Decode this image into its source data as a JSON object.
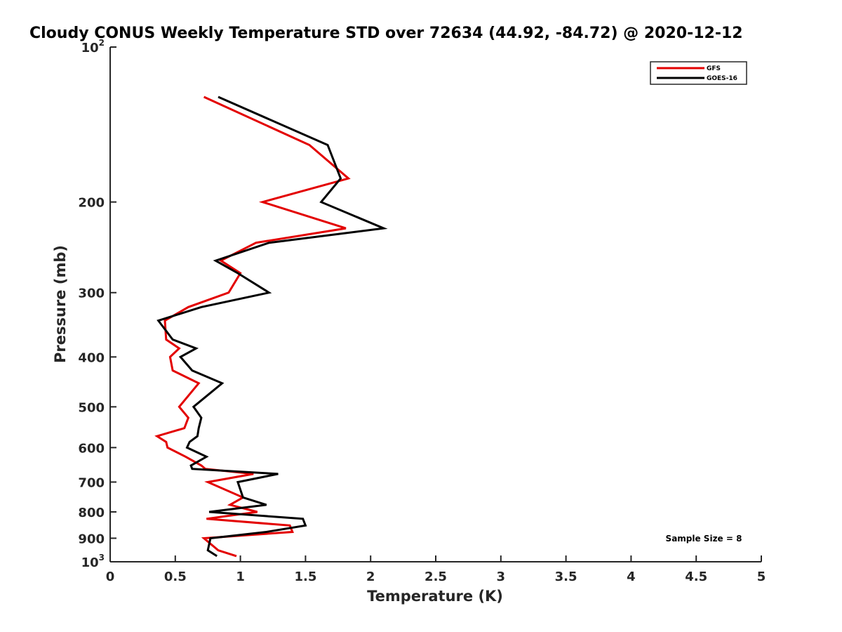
{
  "chart_data": {
    "type": "line",
    "title": "Cloudy CONUS Weekly Temperature STD over 72634 (44.92, -84.72) @ 2020-12-12",
    "xlabel": "Temperature (K)",
    "ylabel": "Pressure (mb)",
    "xlim": [
      0,
      5
    ],
    "ylim": [
      100,
      1000
    ],
    "y_scale": "log",
    "y_reversed": true,
    "grid": false,
    "legend_position": "top-right",
    "x_ticks": [
      "0",
      "0.5",
      "1",
      "1.5",
      "2",
      "2.5",
      "3",
      "3.5",
      "4",
      "4.5",
      "5"
    ],
    "y_ticks": [
      {
        "value": 100,
        "base": "10",
        "exp": "2"
      },
      {
        "value": 200,
        "label": "200"
      },
      {
        "value": 300,
        "label": "300"
      },
      {
        "value": 400,
        "label": "400"
      },
      {
        "value": 500,
        "label": "500"
      },
      {
        "value": 600,
        "label": "600"
      },
      {
        "value": 700,
        "label": "700"
      },
      {
        "value": 800,
        "label": "800"
      },
      {
        "value": 900,
        "label": "900"
      },
      {
        "value": 1000,
        "base": "10",
        "exp": "3"
      }
    ],
    "annotation": "Sample Size = 8",
    "series": [
      {
        "name": "GFS",
        "color": "#e30000",
        "points": [
          {
            "x": 0.72,
            "p": 125
          },
          {
            "x": 1.53,
            "p": 155
          },
          {
            "x": 1.83,
            "p": 180
          },
          {
            "x": 1.17,
            "p": 200
          },
          {
            "x": 1.81,
            "p": 225
          },
          {
            "x": 1.12,
            "p": 240
          },
          {
            "x": 0.85,
            "p": 260
          },
          {
            "x": 1.0,
            "p": 275
          },
          {
            "x": 0.91,
            "p": 300
          },
          {
            "x": 0.6,
            "p": 320
          },
          {
            "x": 0.42,
            "p": 340
          },
          {
            "x": 0.43,
            "p": 370
          },
          {
            "x": 0.53,
            "p": 385
          },
          {
            "x": 0.46,
            "p": 400
          },
          {
            "x": 0.48,
            "p": 425
          },
          {
            "x": 0.68,
            "p": 450
          },
          {
            "x": 0.53,
            "p": 500
          },
          {
            "x": 0.6,
            "p": 525
          },
          {
            "x": 0.57,
            "p": 550
          },
          {
            "x": 0.36,
            "p": 570
          },
          {
            "x": 0.43,
            "p": 585
          },
          {
            "x": 0.44,
            "p": 600
          },
          {
            "x": 0.58,
            "p": 625
          },
          {
            "x": 0.7,
            "p": 650
          },
          {
            "x": 0.73,
            "p": 660
          },
          {
            "x": 1.1,
            "p": 675
          },
          {
            "x": 0.75,
            "p": 700
          },
          {
            "x": 1.02,
            "p": 750
          },
          {
            "x": 0.92,
            "p": 775
          },
          {
            "x": 1.13,
            "p": 800
          },
          {
            "x": 0.74,
            "p": 825
          },
          {
            "x": 1.38,
            "p": 850
          },
          {
            "x": 1.4,
            "p": 875
          },
          {
            "x": 0.72,
            "p": 900
          },
          {
            "x": 0.83,
            "p": 950
          },
          {
            "x": 0.97,
            "p": 975
          }
        ]
      },
      {
        "name": "GOES-16",
        "color": "#000000",
        "points": [
          {
            "x": 0.83,
            "p": 125
          },
          {
            "x": 1.67,
            "p": 155
          },
          {
            "x": 1.77,
            "p": 180
          },
          {
            "x": 1.62,
            "p": 200
          },
          {
            "x": 2.1,
            "p": 225
          },
          {
            "x": 1.22,
            "p": 240
          },
          {
            "x": 0.81,
            "p": 260
          },
          {
            "x": 0.98,
            "p": 275
          },
          {
            "x": 1.22,
            "p": 300
          },
          {
            "x": 0.7,
            "p": 320
          },
          {
            "x": 0.37,
            "p": 340
          },
          {
            "x": 0.48,
            "p": 370
          },
          {
            "x": 0.66,
            "p": 385
          },
          {
            "x": 0.54,
            "p": 400
          },
          {
            "x": 0.63,
            "p": 425
          },
          {
            "x": 0.86,
            "p": 450
          },
          {
            "x": 0.64,
            "p": 500
          },
          {
            "x": 0.7,
            "p": 525
          },
          {
            "x": 0.68,
            "p": 550
          },
          {
            "x": 0.67,
            "p": 570
          },
          {
            "x": 0.61,
            "p": 585
          },
          {
            "x": 0.59,
            "p": 600
          },
          {
            "x": 0.74,
            "p": 625
          },
          {
            "x": 0.62,
            "p": 650
          },
          {
            "x": 0.63,
            "p": 660
          },
          {
            "x": 1.29,
            "p": 675
          },
          {
            "x": 0.98,
            "p": 700
          },
          {
            "x": 1.02,
            "p": 750
          },
          {
            "x": 1.2,
            "p": 775
          },
          {
            "x": 0.76,
            "p": 800
          },
          {
            "x": 1.48,
            "p": 825
          },
          {
            "x": 1.5,
            "p": 850
          },
          {
            "x": 1.2,
            "p": 875
          },
          {
            "x": 0.77,
            "p": 900
          },
          {
            "x": 0.75,
            "p": 950
          },
          {
            "x": 0.82,
            "p": 975
          }
        ]
      }
    ]
  }
}
